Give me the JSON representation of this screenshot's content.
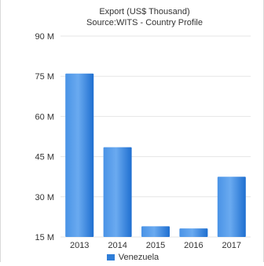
{
  "chart_data": {
    "type": "bar",
    "title": "Export (US$ Thousand)",
    "subtitle": "Source:WITS - Country Profile",
    "categories": [
      "2013",
      "2014",
      "2015",
      "2016",
      "2017"
    ],
    "series": [
      {
        "name": "Venezuela",
        "values": [
          76,
          48.5,
          19,
          18.2,
          37.5
        ]
      }
    ],
    "ylim": [
      15,
      90
    ],
    "yticks": [
      "15 M",
      "30 M",
      "45 M",
      "60 M",
      "75 M",
      "90 M"
    ],
    "ytick_values": [
      15,
      30,
      45,
      60,
      75,
      90
    ],
    "grid": true,
    "legend_position": "bottom",
    "colors": {
      "bar": "#2f7ed8",
      "bar_light": "#5fa1ec",
      "grid": "#e6e6e6",
      "text": "#333333"
    }
  }
}
